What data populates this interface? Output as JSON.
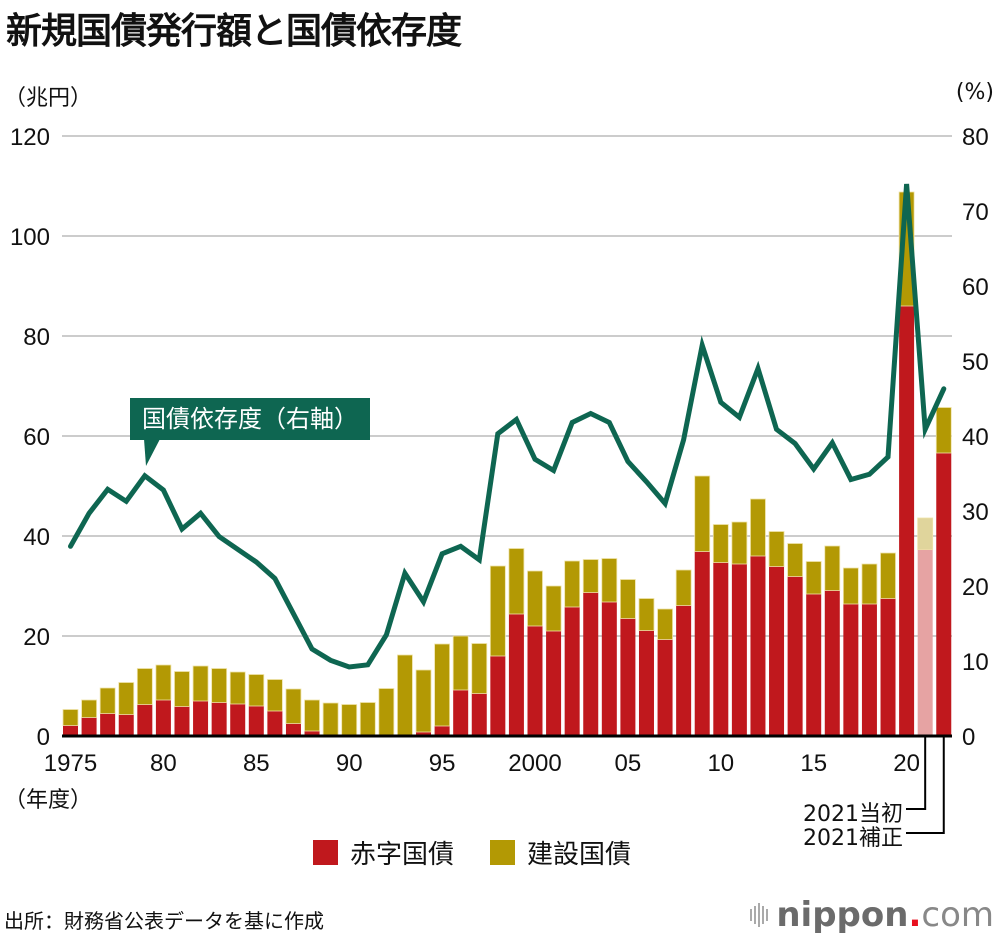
{
  "title": "新規国債発行額と国債依存度",
  "left_unit": "（兆円）",
  "right_unit": "(%)",
  "year_unit": "（年度）",
  "callout_label": "国債依存度（右軸）",
  "source": "出所：財務省公表データを基に作成",
  "logo": {
    "brand": "nippon",
    "dot": ".",
    "suffix": "com",
    "icon": "sound-bars-icon"
  },
  "labels_2021": {
    "initial": "2021当初",
    "supplementary": "2021補正"
  },
  "colors": {
    "deficit": "#c0181d",
    "construction": "#b39904",
    "deficit_initial_2021": "#e6a3a3",
    "construction_initial_2021": "#e0d59c",
    "dependency_line": "#0e6651",
    "grid": "#cccccc",
    "axis": "#000000"
  },
  "chart_data": {
    "type": "bar",
    "stacked": true,
    "title": "新規国債発行額と国債依存度",
    "xlabel": "（年度）",
    "ylabel": "（兆円）",
    "y2label": "(%)",
    "ylim": [
      0,
      120
    ],
    "y2lim": [
      0,
      80
    ],
    "yticks": [
      "0",
      "20",
      "40",
      "60",
      "80",
      "100",
      "120"
    ],
    "y2ticks": [
      "0",
      "10",
      "20",
      "30",
      "40",
      "50",
      "60",
      "70",
      "80"
    ],
    "grid": true,
    "legend_position": "bottom-center",
    "xtick_labels": [
      {
        "index": 0,
        "label": "1975"
      },
      {
        "index": 5,
        "label": "80"
      },
      {
        "index": 10,
        "label": "85"
      },
      {
        "index": 15,
        "label": "90"
      },
      {
        "index": 20,
        "label": "95"
      },
      {
        "index": 25,
        "label": "2000"
      },
      {
        "index": 30,
        "label": "05"
      },
      {
        "index": 35,
        "label": "10"
      },
      {
        "index": 40,
        "label": "15"
      },
      {
        "index": 45,
        "label": "20"
      }
    ],
    "categories": [
      "1975",
      "1976",
      "1977",
      "1978",
      "1979",
      "1980",
      "1981",
      "1982",
      "1983",
      "1984",
      "1985",
      "1986",
      "1987",
      "1988",
      "1989",
      "1990",
      "1991",
      "1992",
      "1993",
      "1994",
      "1995",
      "1996",
      "1997",
      "1998",
      "1999",
      "2000",
      "2001",
      "2002",
      "2003",
      "2004",
      "2005",
      "2006",
      "2007",
      "2008",
      "2009",
      "2010",
      "2011",
      "2012",
      "2013",
      "2014",
      "2015",
      "2016",
      "2017",
      "2018",
      "2019",
      "2020",
      "2021当初",
      "2021補正"
    ],
    "series": [
      {
        "name": "赤字国債",
        "type": "bar",
        "axis": "left",
        "values": [
          2.1,
          3.7,
          4.5,
          4.3,
          6.3,
          7.2,
          5.9,
          7.0,
          6.7,
          6.4,
          6.0,
          5.0,
          2.5,
          1.0,
          0,
          0,
          0,
          0,
          0,
          0.8,
          2.0,
          9.2,
          8.5,
          16.0,
          24.4,
          22.0,
          21.0,
          25.8,
          28.7,
          26.8,
          23.5,
          21.1,
          19.3,
          26.1,
          36.9,
          34.7,
          34.4,
          36.0,
          33.9,
          31.9,
          28.4,
          29.1,
          26.4,
          26.4,
          27.5,
          86.0,
          37.3,
          56.6
        ]
      },
      {
        "name": "建設国債",
        "type": "bar",
        "axis": "left",
        "values": [
          3.2,
          3.5,
          5.1,
          6.4,
          7.2,
          7.0,
          7.0,
          7.0,
          6.8,
          6.4,
          6.3,
          6.3,
          6.9,
          6.2,
          6.6,
          6.3,
          6.7,
          9.5,
          16.2,
          12.4,
          16.4,
          10.8,
          10.0,
          18.0,
          13.1,
          11.0,
          9.0,
          9.2,
          6.6,
          8.7,
          7.8,
          6.4,
          6.1,
          7.1,
          15.1,
          7.6,
          8.4,
          11.4,
          7.0,
          6.6,
          6.5,
          8.9,
          7.2,
          8.0,
          9.1,
          22.8,
          6.3,
          9.1
        ]
      },
      {
        "name": "国債依存度（右軸）",
        "type": "line",
        "axis": "right",
        "values": [
          25.3,
          29.7,
          32.9,
          31.3,
          34.7,
          32.8,
          27.6,
          29.7,
          26.6,
          24.9,
          23.2,
          21.0,
          16.3,
          11.6,
          10.1,
          9.2,
          9.5,
          13.5,
          21.7,
          17.9,
          24.3,
          25.3,
          23.5,
          40.3,
          42.2,
          36.9,
          35.4,
          41.8,
          43.0,
          41.8,
          36.6,
          33.9,
          31.0,
          39.5,
          52.1,
          44.5,
          42.5,
          49.0,
          40.9,
          39.0,
          35.6,
          39.1,
          34.2,
          34.9,
          37.2,
          73.6,
          40.9,
          46.3
        ]
      }
    ],
    "legend": [
      "赤字国債",
      "建設国債"
    ],
    "annotations": [
      "国債依存度（右軸）",
      "2021当初",
      "2021補正"
    ]
  }
}
